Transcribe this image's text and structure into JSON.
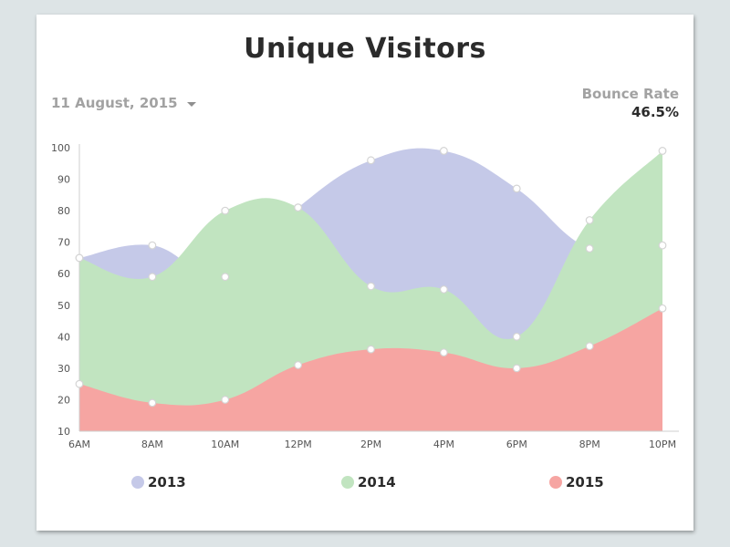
{
  "header": {
    "title": "Unique Visitors",
    "date_label": "11 August, 2015",
    "bounce_label": "Bounce Rate",
    "bounce_value": "46.5%"
  },
  "chart_data": {
    "type": "area",
    "title": "Unique Visitors",
    "x": [
      "6AM",
      "8AM",
      "10AM",
      "12PM",
      "2PM",
      "4PM",
      "6PM",
      "8PM",
      "10PM"
    ],
    "ylim": [
      10,
      100
    ],
    "yticks": [
      100,
      90,
      80,
      70,
      60,
      50,
      40,
      30,
      20,
      10
    ],
    "grid": false,
    "legend": "bottom",
    "series": [
      {
        "name": "2013",
        "color": "#c5c9e8",
        "values": [
          65,
          69,
          59,
          81,
          96,
          99,
          87,
          68,
          69
        ]
      },
      {
        "name": "2014",
        "color": "#c1e4c0",
        "values": [
          65,
          59,
          80,
          81,
          56,
          55,
          40,
          77,
          99
        ]
      },
      {
        "name": "2015",
        "color": "#f6a5a2",
        "values": [
          25,
          19,
          20,
          31,
          36,
          35,
          30,
          37,
          49
        ]
      }
    ]
  }
}
